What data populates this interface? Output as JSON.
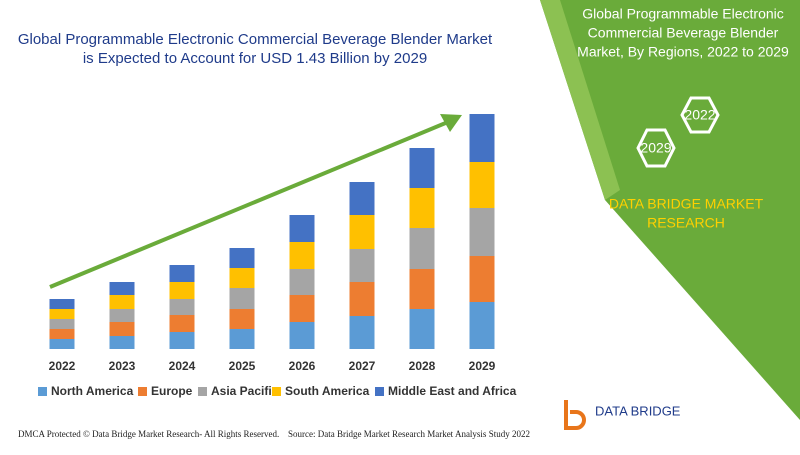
{
  "chart_data": {
    "type": "bar",
    "stacked": true,
    "title": [
      "Global Programmable Electronic Commercial Beverage Blender Market",
      "is Expected to Account for USD 1.43 Billion by 2029"
    ],
    "categories": [
      "2022",
      "2023",
      "2024",
      "2025",
      "2026",
      "2027",
      "2028",
      "2029"
    ],
    "series": [
      {
        "name": "North America",
        "color": "#5b9bd5",
        "values": [
          10,
          13,
          17,
          20,
          27,
          33,
          40,
          47
        ]
      },
      {
        "name": "Europe",
        "color": "#ed7d31",
        "values": [
          10,
          14,
          17,
          20,
          27,
          34,
          40,
          46
        ]
      },
      {
        "name": "Asia Pacific",
        "color": "#a5a5a5",
        "values": [
          10,
          13,
          16,
          21,
          26,
          33,
          41,
          48
        ]
      },
      {
        "name": "South America",
        "color": "#ffc000",
        "values": [
          10,
          14,
          17,
          20,
          27,
          34,
          40,
          46
        ]
      },
      {
        "name": "Middle East and Africa",
        "color": "#4472c4",
        "values": [
          10,
          13,
          17,
          20,
          27,
          33,
          40,
          48
        ]
      }
    ],
    "legend": "bottom"
  },
  "panel": {
    "title": [
      "Global Programmable Electronic",
      "Commercial Beverage Blender",
      "Market, By Regions, 2022 to 2029"
    ],
    "hex_labels": [
      "2022",
      "2029"
    ],
    "brand": [
      "DATA BRIDGE MARKET",
      "RESEARCH"
    ],
    "logo": "DATA BRIDGE"
  },
  "footer": {
    "left": "DMCA Protected © Data Bridge Market Research- All Rights Reserved.",
    "right": "Source: Data Bridge Market Research Market Analysis Study 2022"
  }
}
